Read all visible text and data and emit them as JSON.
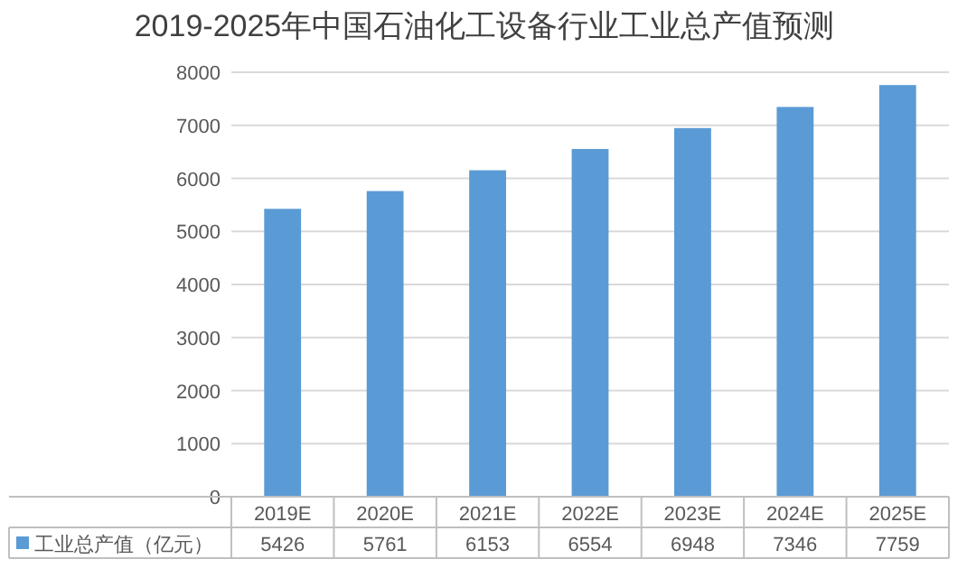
{
  "chart_data": {
    "type": "bar",
    "title": "2019-2025年中国石油化工设备行业工业总产值预测",
    "categories": [
      "2019E",
      "2020E",
      "2021E",
      "2022E",
      "2023E",
      "2024E",
      "2025E"
    ],
    "series": [
      {
        "name": "工业总产值（亿元）",
        "color": "#5b9bd5",
        "values": [
          5426,
          5761,
          6153,
          6554,
          6948,
          7346,
          7759
        ]
      }
    ],
    "ylim": [
      0,
      8000
    ],
    "yticks": [
      0,
      1000,
      2000,
      3000,
      4000,
      5000,
      6000,
      7000,
      8000
    ],
    "grid": "y",
    "legend": "bottom",
    "data_labels": true
  }
}
